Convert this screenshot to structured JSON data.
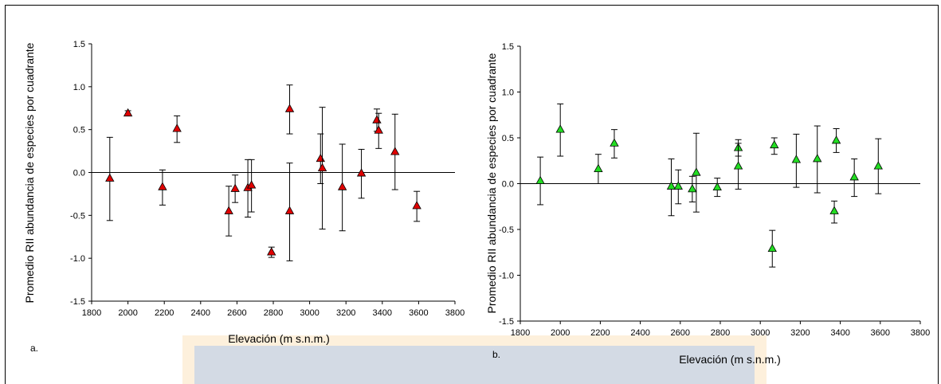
{
  "chart_data": [
    {
      "type": "scatter",
      "panel_label": "a.",
      "xlabel": "Elevación (m s.n.m.)",
      "ylabel": "Promedio RII abundancia de especies por cuadrante",
      "xlim": [
        1800,
        3800
      ],
      "ylim": [
        -1.5,
        1.5
      ],
      "xticks": [
        "1800",
        "2000",
        "2200",
        "2400",
        "2600",
        "2800",
        "3000",
        "3200",
        "3400",
        "3600",
        "3800"
      ],
      "yticks": [
        "1.5",
        "1.0",
        "0.5",
        "0.0",
        "-0.5",
        "-1.0",
        "-1.5"
      ],
      "marker_color": "#e00000",
      "points": [
        {
          "x": 1900,
          "y": -0.07,
          "lo": -0.56,
          "hi": 0.41
        },
        {
          "x": 2000,
          "y": 0.69,
          "lo": 0.66,
          "hi": 0.72
        },
        {
          "x": 2190,
          "y": -0.17,
          "lo": -0.38,
          "hi": 0.03
        },
        {
          "x": 2270,
          "y": 0.51,
          "lo": 0.35,
          "hi": 0.66
        },
        {
          "x": 2555,
          "y": -0.45,
          "lo": -0.74,
          "hi": -0.16
        },
        {
          "x": 2590,
          "y": -0.19,
          "lo": -0.35,
          "hi": -0.03
        },
        {
          "x": 2660,
          "y": -0.18,
          "lo": -0.52,
          "hi": 0.15
        },
        {
          "x": 2680,
          "y": -0.15,
          "lo": -0.46,
          "hi": 0.15
        },
        {
          "x": 2790,
          "y": -0.93,
          "lo": -0.99,
          "hi": -0.87
        },
        {
          "x": 2890,
          "y": 0.74,
          "lo": 0.45,
          "hi": 1.02
        },
        {
          "x": 2890,
          "y": -0.45,
          "lo": -1.03,
          "hi": 0.11
        },
        {
          "x": 3060,
          "y": 0.16,
          "lo": -0.13,
          "hi": 0.45
        },
        {
          "x": 3070,
          "y": 0.05,
          "lo": -0.66,
          "hi": 0.76
        },
        {
          "x": 3180,
          "y": -0.17,
          "lo": -0.68,
          "hi": 0.33
        },
        {
          "x": 3285,
          "y": -0.01,
          "lo": -0.3,
          "hi": 0.27
        },
        {
          "x": 3370,
          "y": 0.61,
          "lo": 0.48,
          "hi": 0.74
        },
        {
          "x": 3380,
          "y": 0.49,
          "lo": 0.28,
          "hi": 0.69
        },
        {
          "x": 3470,
          "y": 0.24,
          "lo": -0.2,
          "hi": 0.68
        },
        {
          "x": 3590,
          "y": -0.39,
          "lo": -0.57,
          "hi": -0.22
        }
      ]
    },
    {
      "type": "scatter",
      "panel_label": "b.",
      "xlabel": "Elevación (m s.n.m.)",
      "ylabel": "Promedio RII abundancia de especies por cuadrante",
      "xlim": [
        1800,
        3800
      ],
      "ylim": [
        -1.5,
        1.5
      ],
      "xticks": [
        "1800",
        "2000",
        "2200",
        "2400",
        "2600",
        "2800",
        "3000",
        "3200",
        "3400",
        "3600",
        "3800"
      ],
      "yticks": [
        "1.5",
        "1.0",
        "0.5",
        "0.0",
        "-0.5",
        "-1.0",
        "-1.5"
      ],
      "marker_color": "#22dd22",
      "points": [
        {
          "x": 1900,
          "y": 0.03,
          "lo": -0.23,
          "hi": 0.29
        },
        {
          "x": 2000,
          "y": 0.59,
          "lo": 0.3,
          "hi": 0.87
        },
        {
          "x": 2190,
          "y": 0.16,
          "lo": 0.0,
          "hi": 0.32
        },
        {
          "x": 2270,
          "y": 0.44,
          "lo": 0.28,
          "hi": 0.59
        },
        {
          "x": 2555,
          "y": -0.03,
          "lo": -0.35,
          "hi": 0.27
        },
        {
          "x": 2590,
          "y": -0.03,
          "lo": -0.22,
          "hi": 0.15
        },
        {
          "x": 2660,
          "y": -0.06,
          "lo": -0.2,
          "hi": 0.08
        },
        {
          "x": 2680,
          "y": 0.12,
          "lo": -0.31,
          "hi": 0.55
        },
        {
          "x": 2785,
          "y": -0.04,
          "lo": -0.14,
          "hi": 0.06
        },
        {
          "x": 2890,
          "y": 0.39,
          "lo": 0.3,
          "hi": 0.48
        },
        {
          "x": 2890,
          "y": 0.19,
          "lo": -0.06,
          "hi": 0.44
        },
        {
          "x": 3060,
          "y": -0.71,
          "lo": -0.91,
          "hi": -0.51
        },
        {
          "x": 3070,
          "y": 0.42,
          "lo": 0.32,
          "hi": 0.5
        },
        {
          "x": 3180,
          "y": 0.26,
          "lo": -0.04,
          "hi": 0.54
        },
        {
          "x": 3285,
          "y": 0.27,
          "lo": -0.1,
          "hi": 0.63
        },
        {
          "x": 3370,
          "y": -0.3,
          "lo": -0.43,
          "hi": -0.19
        },
        {
          "x": 3380,
          "y": 0.47,
          "lo": 0.34,
          "hi": 0.6
        },
        {
          "x": 3470,
          "y": 0.07,
          "lo": -0.14,
          "hi": 0.27
        },
        {
          "x": 3590,
          "y": 0.19,
          "lo": -0.11,
          "hi": 0.49
        }
      ]
    }
  ]
}
